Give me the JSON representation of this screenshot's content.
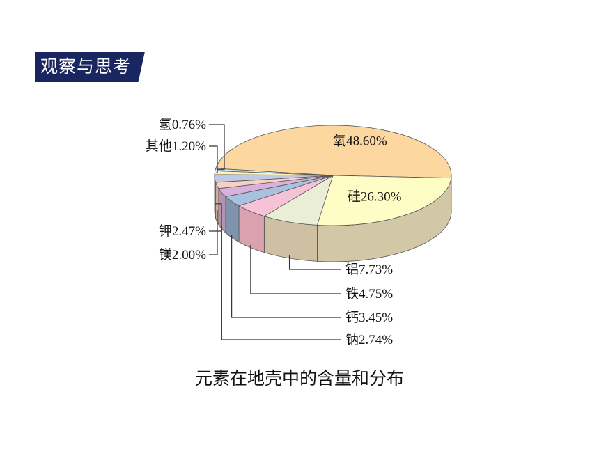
{
  "header": {
    "tag_label": "观察与思考"
  },
  "caption": "元素在地壳中的含量和分布",
  "chart_data": {
    "type": "pie",
    "title": "",
    "three_d": true,
    "series": [
      {
        "label": "氧48.60%",
        "name": "氧",
        "value": 48.6,
        "color": "#fcd7a0",
        "side": "#d0b386"
      },
      {
        "label": "硅26.30%",
        "name": "硅",
        "value": 26.3,
        "color": "#fffdc6",
        "side": "#d2c7a6"
      },
      {
        "label": "铝7.73%",
        "name": "铝",
        "value": 7.73,
        "color": "#eaeed7",
        "side": "#cfbfa3"
      },
      {
        "label": "铁4.75%",
        "name": "铁",
        "value": 4.75,
        "color": "#f6c3d6",
        "side": "#d9a2ae"
      },
      {
        "label": "钙3.45%",
        "name": "钙",
        "value": 3.45,
        "color": "#a9c0de",
        "side": "#7f93ad"
      },
      {
        "label": "钠2.74%",
        "name": "钠",
        "value": 2.74,
        "color": "#d8b2da",
        "side": "#b393ad"
      },
      {
        "label": "镁2.00%",
        "name": "镁",
        "value": 2.0,
        "color": "#f7cfc4",
        "side": "#d7aca2"
      },
      {
        "label": "钾2.47%",
        "name": "钾",
        "value": 2.47,
        "color": "#bfcbe6",
        "side": "#98a2bd"
      },
      {
        "label": "其他1.20%",
        "name": "其他",
        "value": 1.2,
        "color": "#fff2be",
        "side": "#d9cc9c"
      },
      {
        "label": "氢0.76%",
        "name": "氢",
        "value": 0.76,
        "color": "#c7e6f0",
        "side": "#9fbdc6"
      }
    ]
  }
}
